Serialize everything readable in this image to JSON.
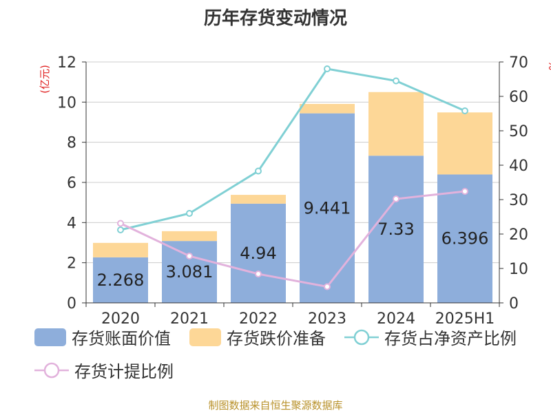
{
  "chart_data": {
    "type": "bar",
    "title": "历年存货变动情况",
    "categories": [
      "2020",
      "2021",
      "2022",
      "2023",
      "2024",
      "2025H1"
    ],
    "left_axis": {
      "label": "(亿元)",
      "ylim": [
        0,
        12
      ],
      "ticks": [
        0,
        2,
        4,
        6,
        8,
        10,
        12
      ]
    },
    "right_axis": {
      "label": "%",
      "ylim": [
        0,
        70
      ],
      "ticks": [
        0,
        10,
        20,
        30,
        40,
        50,
        60,
        70
      ]
    },
    "grid": true,
    "legend_position": "bottom-left",
    "series": [
      {
        "name": "存货账面价值",
        "type": "bar",
        "stack": "inventory",
        "axis": "left",
        "color": "#8eaedb",
        "values": [
          2.268,
          3.081,
          4.94,
          9.441,
          7.33,
          6.396
        ],
        "labels": [
          "2.268",
          "3.081",
          "4.94",
          "9.441",
          "7.33",
          "6.396"
        ]
      },
      {
        "name": "存货跌价准备",
        "type": "bar",
        "stack": "inventory",
        "axis": "left",
        "color": "#fdd797",
        "values": [
          0.72,
          0.49,
          0.44,
          0.47,
          3.17,
          3.09
        ]
      },
      {
        "name": "存货占净资产比例",
        "type": "line",
        "axis": "right",
        "color": "#80d0d4",
        "values": [
          21.2,
          26.0,
          38.3,
          68.0,
          64.5,
          55.8
        ]
      },
      {
        "name": "存货计提比例",
        "type": "line",
        "axis": "right",
        "color": "#e2b2dc",
        "values": [
          23.1,
          13.6,
          8.4,
          4.7,
          30.2,
          32.4
        ]
      }
    ]
  },
  "legend": {
    "book_value": "存货账面价值",
    "impairment": "存货跌价准备",
    "ratio_net_assets": "存货占净资产比例",
    "provision_ratio": "存货计提比例"
  },
  "footer": {
    "source": "制图数据来自恒生聚源数据库"
  }
}
